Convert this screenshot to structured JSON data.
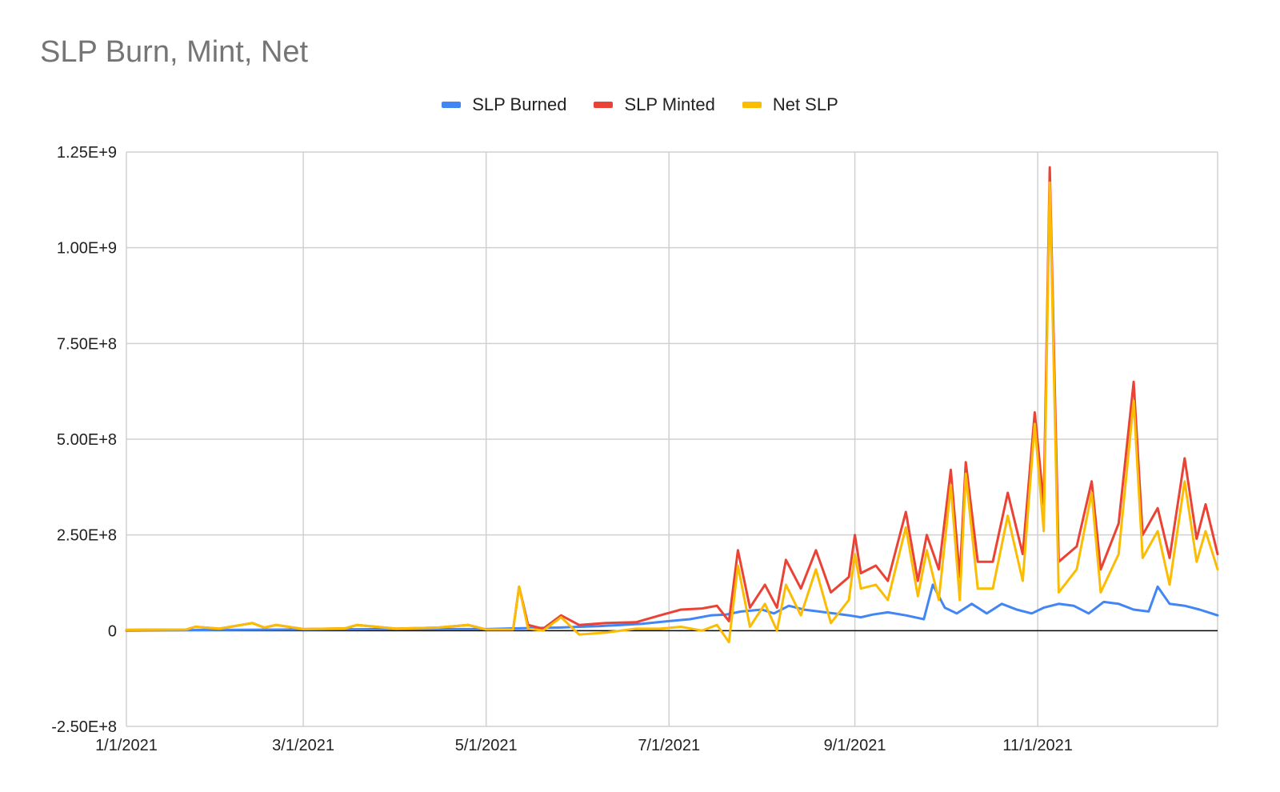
{
  "chart_data": {
    "type": "line",
    "title": "SLP Burn, Mint, Net",
    "xlabel": "",
    "ylabel": "",
    "x_start": "2021-01-01",
    "x_end": "2021-12-31",
    "x_ticks": [
      "1/1/2021",
      "3/1/2021",
      "5/1/2021",
      "7/1/2021",
      "9/1/2021",
      "11/1/2021"
    ],
    "y_ticks": [
      "1.25E+9",
      "1.00E+9",
      "7.50E+8",
      "5.00E+8",
      "2.50E+8",
      "0",
      "-2.50E+8"
    ],
    "ylim": [
      -250000000,
      1250000000
    ],
    "grid": true,
    "legend_position": "top-center",
    "series": [
      {
        "name": "SLP Burned",
        "color": "#4285f4",
        "points": [
          [
            "2021-01-01",
            0
          ],
          [
            "2021-02-01",
            2000000
          ],
          [
            "2021-03-01",
            3000000
          ],
          [
            "2021-04-01",
            4000000
          ],
          [
            "2021-05-01",
            4000000
          ],
          [
            "2021-05-10",
            6000000
          ],
          [
            "2021-05-25",
            8000000
          ],
          [
            "2021-06-01",
            10000000
          ],
          [
            "2021-06-08",
            12000000
          ],
          [
            "2021-06-15",
            15000000
          ],
          [
            "2021-06-22",
            18000000
          ],
          [
            "2021-07-01",
            25000000
          ],
          [
            "2021-07-08",
            30000000
          ],
          [
            "2021-07-15",
            40000000
          ],
          [
            "2021-07-20",
            42000000
          ],
          [
            "2021-07-25",
            50000000
          ],
          [
            "2021-08-01",
            55000000
          ],
          [
            "2021-08-05",
            45000000
          ],
          [
            "2021-08-10",
            65000000
          ],
          [
            "2021-08-15",
            55000000
          ],
          [
            "2021-08-20",
            50000000
          ],
          [
            "2021-08-25",
            45000000
          ],
          [
            "2021-08-30",
            40000000
          ],
          [
            "2021-09-03",
            35000000
          ],
          [
            "2021-09-07",
            42000000
          ],
          [
            "2021-09-12",
            48000000
          ],
          [
            "2021-09-18",
            40000000
          ],
          [
            "2021-09-24",
            30000000
          ],
          [
            "2021-09-27",
            120000000
          ],
          [
            "2021-10-01",
            60000000
          ],
          [
            "2021-10-05",
            45000000
          ],
          [
            "2021-10-10",
            70000000
          ],
          [
            "2021-10-15",
            45000000
          ],
          [
            "2021-10-20",
            70000000
          ],
          [
            "2021-10-25",
            55000000
          ],
          [
            "2021-10-30",
            45000000
          ],
          [
            "2021-11-03",
            60000000
          ],
          [
            "2021-11-08",
            70000000
          ],
          [
            "2021-11-13",
            65000000
          ],
          [
            "2021-11-18",
            45000000
          ],
          [
            "2021-11-23",
            75000000
          ],
          [
            "2021-11-28",
            70000000
          ],
          [
            "2021-12-03",
            55000000
          ],
          [
            "2021-12-08",
            50000000
          ],
          [
            "2021-12-11",
            115000000
          ],
          [
            "2021-12-15",
            70000000
          ],
          [
            "2021-12-20",
            65000000
          ],
          [
            "2021-12-25",
            55000000
          ],
          [
            "2021-12-31",
            40000000
          ]
        ]
      },
      {
        "name": "SLP Minted",
        "color": "#ea4335",
        "points": [
          [
            "2021-01-01",
            2000000
          ],
          [
            "2021-01-21",
            3000000
          ],
          [
            "2021-01-24",
            10000000
          ],
          [
            "2021-02-01",
            5000000
          ],
          [
            "2021-02-12",
            20000000
          ],
          [
            "2021-02-16",
            8000000
          ],
          [
            "2021-02-20",
            15000000
          ],
          [
            "2021-03-01",
            4000000
          ],
          [
            "2021-03-15",
            6000000
          ],
          [
            "2021-03-19",
            15000000
          ],
          [
            "2021-04-01",
            5000000
          ],
          [
            "2021-04-15",
            8000000
          ],
          [
            "2021-04-25",
            15000000
          ],
          [
            "2021-05-01",
            3000000
          ],
          [
            "2021-05-10",
            3000000
          ],
          [
            "2021-05-12",
            115000000
          ],
          [
            "2021-05-15",
            15000000
          ],
          [
            "2021-05-20",
            5000000
          ],
          [
            "2021-05-26",
            40000000
          ],
          [
            "2021-06-01",
            15000000
          ],
          [
            "2021-06-10",
            20000000
          ],
          [
            "2021-06-20",
            22000000
          ],
          [
            "2021-06-28",
            40000000
          ],
          [
            "2021-07-05",
            55000000
          ],
          [
            "2021-07-12",
            58000000
          ],
          [
            "2021-07-17",
            65000000
          ],
          [
            "2021-07-21",
            25000000
          ],
          [
            "2021-07-24",
            210000000
          ],
          [
            "2021-07-28",
            60000000
          ],
          [
            "2021-08-02",
            120000000
          ],
          [
            "2021-08-06",
            60000000
          ],
          [
            "2021-08-09",
            185000000
          ],
          [
            "2021-08-14",
            110000000
          ],
          [
            "2021-08-19",
            210000000
          ],
          [
            "2021-08-24",
            100000000
          ],
          [
            "2021-08-30",
            140000000
          ],
          [
            "2021-09-01",
            250000000
          ],
          [
            "2021-09-03",
            150000000
          ],
          [
            "2021-09-08",
            170000000
          ],
          [
            "2021-09-12",
            130000000
          ],
          [
            "2021-09-18",
            310000000
          ],
          [
            "2021-09-22",
            130000000
          ],
          [
            "2021-09-25",
            250000000
          ],
          [
            "2021-09-29",
            160000000
          ],
          [
            "2021-10-03",
            420000000
          ],
          [
            "2021-10-06",
            140000000
          ],
          [
            "2021-10-08",
            440000000
          ],
          [
            "2021-10-12",
            180000000
          ],
          [
            "2021-10-17",
            180000000
          ],
          [
            "2021-10-22",
            360000000
          ],
          [
            "2021-10-27",
            200000000
          ],
          [
            "2021-10-31",
            570000000
          ],
          [
            "2021-11-03",
            330000000
          ],
          [
            "2021-11-05",
            1210000000
          ],
          [
            "2021-11-08",
            180000000
          ],
          [
            "2021-11-14",
            220000000
          ],
          [
            "2021-11-19",
            390000000
          ],
          [
            "2021-11-22",
            160000000
          ],
          [
            "2021-11-28",
            280000000
          ],
          [
            "2021-12-03",
            650000000
          ],
          [
            "2021-12-06",
            250000000
          ],
          [
            "2021-12-11",
            320000000
          ],
          [
            "2021-12-15",
            190000000
          ],
          [
            "2021-12-20",
            450000000
          ],
          [
            "2021-12-24",
            240000000
          ],
          [
            "2021-12-27",
            330000000
          ],
          [
            "2021-12-31",
            200000000
          ]
        ]
      },
      {
        "name": "Net SLP",
        "color": "#fbbc04",
        "points": [
          [
            "2021-01-01",
            2000000
          ],
          [
            "2021-01-21",
            3000000
          ],
          [
            "2021-01-24",
            10000000
          ],
          [
            "2021-02-01",
            5000000
          ],
          [
            "2021-02-12",
            20000000
          ],
          [
            "2021-02-16",
            8000000
          ],
          [
            "2021-02-20",
            15000000
          ],
          [
            "2021-03-01",
            4000000
          ],
          [
            "2021-03-15",
            6000000
          ],
          [
            "2021-03-19",
            15000000
          ],
          [
            "2021-04-01",
            5000000
          ],
          [
            "2021-04-15",
            8000000
          ],
          [
            "2021-04-25",
            15000000
          ],
          [
            "2021-05-01",
            3000000
          ],
          [
            "2021-05-10",
            3000000
          ],
          [
            "2021-05-12",
            115000000
          ],
          [
            "2021-05-15",
            5000000
          ],
          [
            "2021-05-20",
            0
          ],
          [
            "2021-05-26",
            35000000
          ],
          [
            "2021-06-01",
            -10000000
          ],
          [
            "2021-06-10",
            -5000000
          ],
          [
            "2021-06-20",
            5000000
          ],
          [
            "2021-06-28",
            5000000
          ],
          [
            "2021-07-05",
            10000000
          ],
          [
            "2021-07-12",
            0
          ],
          [
            "2021-07-17",
            15000000
          ],
          [
            "2021-07-21",
            -30000000
          ],
          [
            "2021-07-24",
            170000000
          ],
          [
            "2021-07-28",
            10000000
          ],
          [
            "2021-08-02",
            70000000
          ],
          [
            "2021-08-06",
            0
          ],
          [
            "2021-08-09",
            120000000
          ],
          [
            "2021-08-14",
            40000000
          ],
          [
            "2021-08-19",
            160000000
          ],
          [
            "2021-08-24",
            20000000
          ],
          [
            "2021-08-30",
            80000000
          ],
          [
            "2021-09-01",
            200000000
          ],
          [
            "2021-09-03",
            110000000
          ],
          [
            "2021-09-08",
            120000000
          ],
          [
            "2021-09-12",
            80000000
          ],
          [
            "2021-09-18",
            270000000
          ],
          [
            "2021-09-22",
            90000000
          ],
          [
            "2021-09-25",
            210000000
          ],
          [
            "2021-09-29",
            80000000
          ],
          [
            "2021-10-03",
            380000000
          ],
          [
            "2021-10-06",
            80000000
          ],
          [
            "2021-10-08",
            410000000
          ],
          [
            "2021-10-12",
            110000000
          ],
          [
            "2021-10-17",
            110000000
          ],
          [
            "2021-10-22",
            300000000
          ],
          [
            "2021-10-27",
            130000000
          ],
          [
            "2021-10-31",
            540000000
          ],
          [
            "2021-11-03",
            260000000
          ],
          [
            "2021-11-05",
            1170000000
          ],
          [
            "2021-11-08",
            100000000
          ],
          [
            "2021-11-14",
            160000000
          ],
          [
            "2021-11-19",
            360000000
          ],
          [
            "2021-11-22",
            100000000
          ],
          [
            "2021-11-28",
            200000000
          ],
          [
            "2021-12-03",
            600000000
          ],
          [
            "2021-12-06",
            190000000
          ],
          [
            "2021-12-11",
            260000000
          ],
          [
            "2021-12-15",
            120000000
          ],
          [
            "2021-12-20",
            390000000
          ],
          [
            "2021-12-24",
            180000000
          ],
          [
            "2021-12-27",
            260000000
          ],
          [
            "2021-12-31",
            160000000
          ]
        ]
      }
    ]
  }
}
